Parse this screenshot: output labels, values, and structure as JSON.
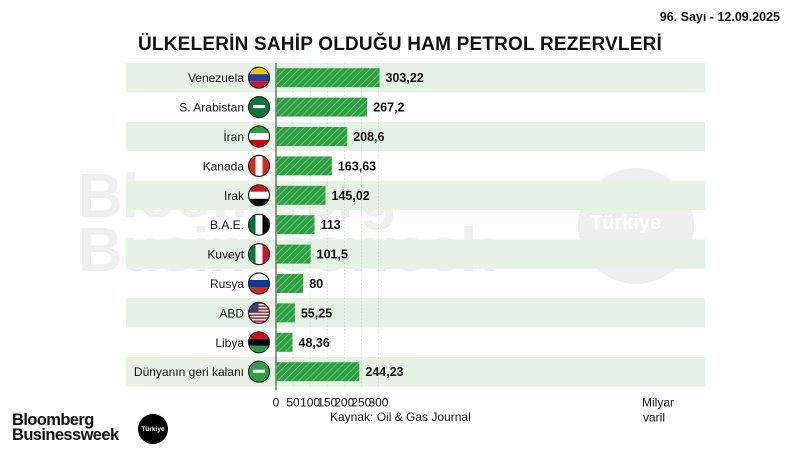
{
  "header": {
    "issue": "96. Sayı - 12.09.2025"
  },
  "watermark": {
    "brand_line1": "Bloomberg",
    "brand_line2": "Businessweek",
    "badge": "Türkiye"
  },
  "footer": {
    "source": "Kaynak: Oil & Gas Journal",
    "brand_line1": "Bloomberg",
    "brand_line2": "Businessweek",
    "badge": "Türkiye"
  },
  "chart_data": {
    "type": "bar",
    "orientation": "horizontal",
    "title": "ÜLKELERİN SAHİP OLDUĞU HAM PETROL REZERVLERİ",
    "categories": [
      "Venezuela",
      "S. Arabistan",
      "İran",
      "Kanada",
      "Irak",
      "B.A.E.",
      "Kuveyt",
      "Rusya",
      "ABD",
      "Libya",
      "Dünyanın geri kalanı"
    ],
    "value_labels": [
      "303,22",
      "267,2",
      "208,6",
      "163,63",
      "145,02",
      "113",
      "101,5",
      "80",
      "55,25",
      "48,36",
      "244,23"
    ],
    "values": [
      303.22,
      267.2,
      208.6,
      163.63,
      145.02,
      113,
      101.5,
      80,
      55.25,
      48.36,
      244.23
    ],
    "flag_icons": [
      "venezuela-flag-icon",
      "saudi-arabia-flag-icon",
      "iran-flag-icon",
      "canada-flag-icon",
      "iraq-flag-icon",
      "uae-flag-icon",
      "kuwait-flag-icon",
      "russia-flag-icon",
      "usa-flag-icon",
      "libya-flag-icon",
      "globe-icon"
    ],
    "x_ticks": [
      0,
      50,
      100,
      150,
      200,
      250,
      300
    ],
    "xlim": [
      0,
      300
    ],
    "xlabel_line1": "Milyar",
    "xlabel_line2": "varil",
    "grid": true,
    "colors": {
      "bar": "#2ea043",
      "bar_stripe": "#d8f0d8",
      "row_band": "#e6f2e6",
      "grid": "#b8d4b8"
    }
  }
}
